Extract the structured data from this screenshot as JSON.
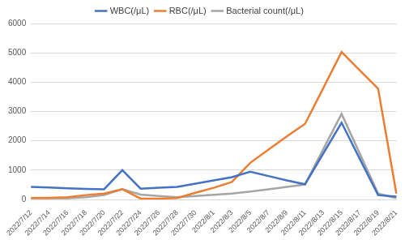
{
  "chart_data": {
    "type": "line",
    "categories": [
      "2022/7/12",
      "2022/7/14",
      "2022/7/16",
      "2022/7/18",
      "2022/7/20",
      "2022/7/22",
      "2022/7/24",
      "2022/7/26",
      "2022/7/28",
      "2022/7/30",
      "2022/8/1",
      "2022/8/3",
      "2022/8/5",
      "2022/8/7",
      "2022/8/9",
      "2022/8/11",
      "2022/8/13",
      "2022/8/15",
      "2022/8/17",
      "2022/8/19",
      "2022/8/21"
    ],
    "series": [
      {
        "name": "WBC(/μL)",
        "color": "#4472c4",
        "values": [
          430,
          410,
          380,
          360,
          350,
          1000,
          370,
          400,
          430,
          540,
          650,
          760,
          950,
          800,
          650,
          520,
          1570,
          2620,
          1380,
          150,
          100
        ]
      },
      {
        "name": "RBC(/μL)",
        "color": "#ed7d31",
        "values": [
          50,
          60,
          80,
          150,
          200,
          350,
          30,
          30,
          50,
          230,
          400,
          600,
          1250,
          1700,
          2150,
          2580,
          3800,
          5030,
          4400,
          3780,
          200
        ]
      },
      {
        "name": "Bacterial count(/μL)",
        "color": "#a5a5a5",
        "values": [
          50,
          40,
          40,
          80,
          150,
          350,
          170,
          120,
          80,
          120,
          160,
          200,
          270,
          350,
          430,
          510,
          1720,
          2920,
          1560,
          200,
          50
        ]
      }
    ],
    "ylim": [
      0,
      6000
    ],
    "yticks": [
      0,
      1000,
      2000,
      3000,
      4000,
      5000,
      6000
    ],
    "grid": true,
    "legend": "top"
  }
}
